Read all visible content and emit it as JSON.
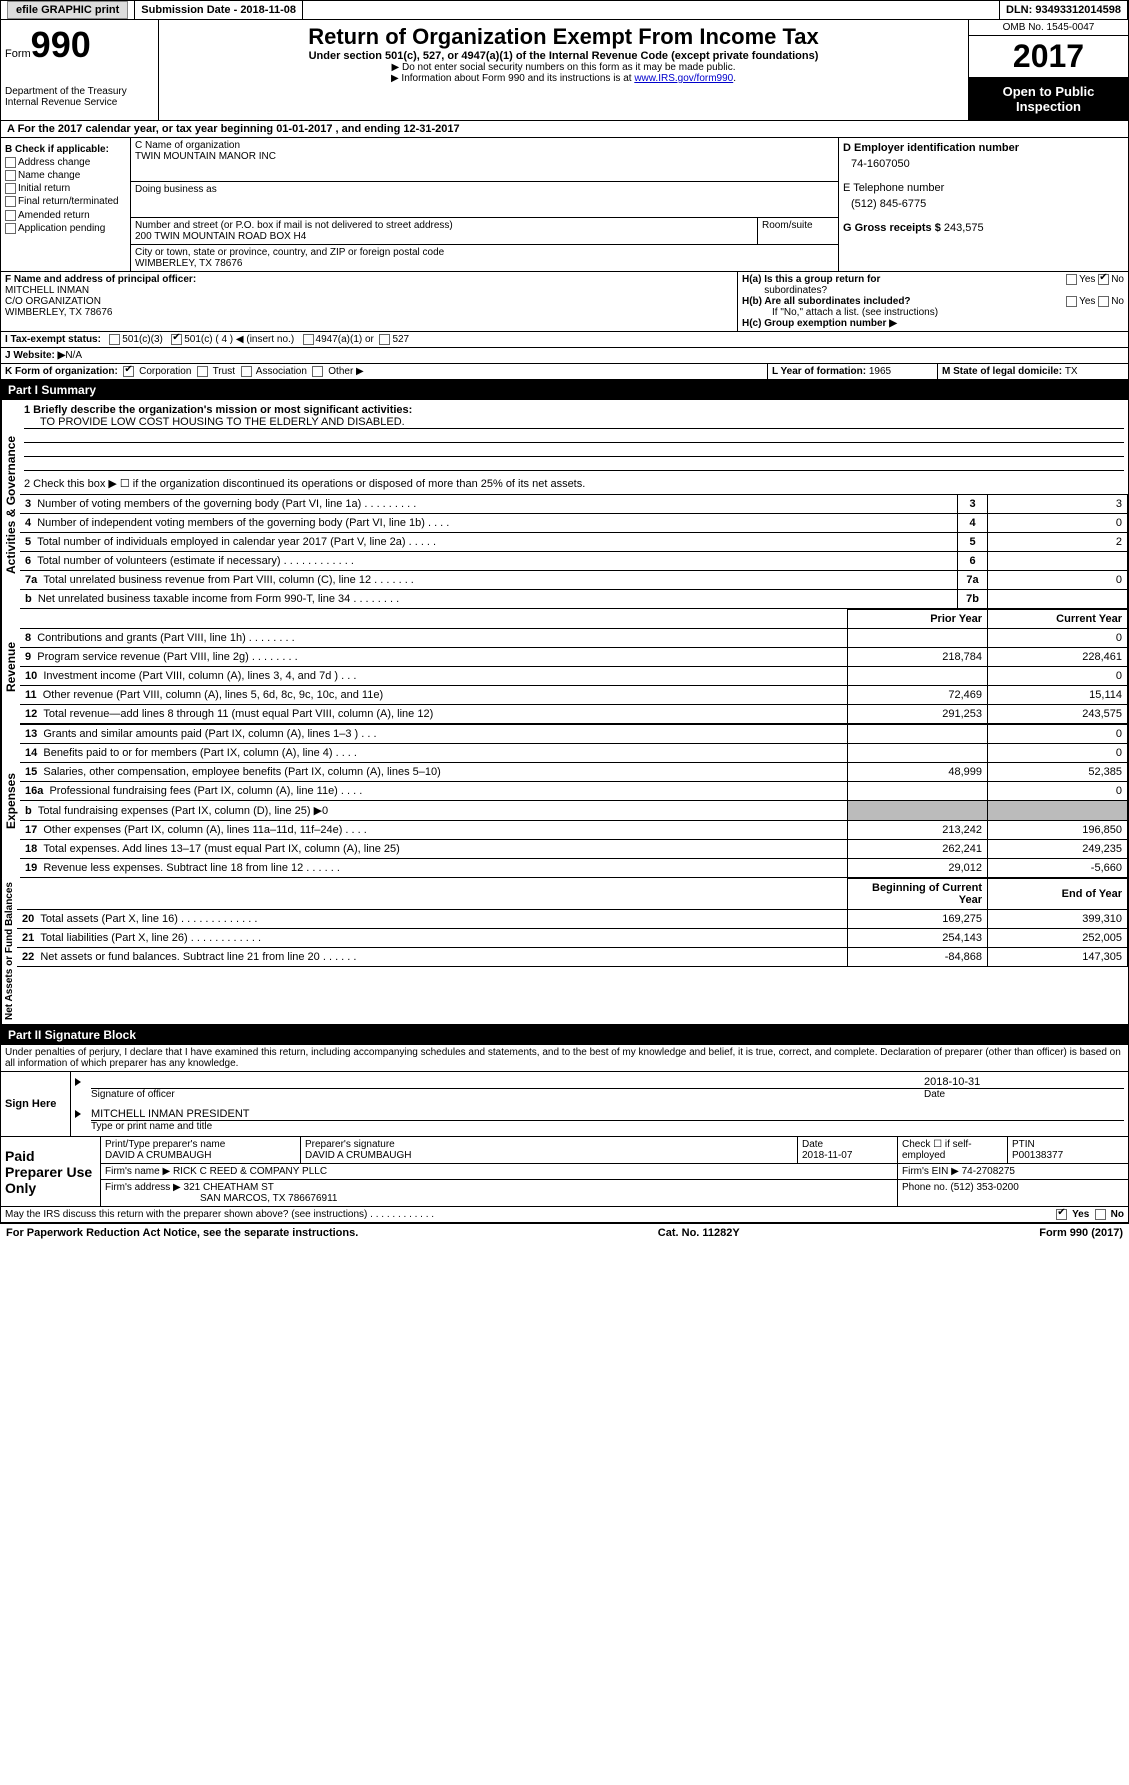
{
  "topbar": {
    "efile_label": "efile GRAPHIC print",
    "submission_label": "Submission Date - 2018-11-08",
    "dln_label": "DLN: 93493312014598"
  },
  "header": {
    "form_word": "Form",
    "form_num": "990",
    "dept1": "Department of the Treasury",
    "dept2": "Internal Revenue Service",
    "title": "Return of Organization Exempt From Income Tax",
    "subtitle": "Under section 501(c), 527, or 4947(a)(1) of the Internal Revenue Code (except private foundations)",
    "note1": "▶ Do not enter social security numbers on this form as it may be made public.",
    "note2_pre": "▶ Information about Form 990 and its instructions is at ",
    "note2_link": "www.IRS.gov/form990",
    "omb": "OMB No. 1545-0047",
    "year": "2017",
    "inspect1": "Open to Public",
    "inspect2": "Inspection"
  },
  "section_a": "A  For the 2017 calendar year, or tax year beginning 01-01-2017   , and ending 12-31-2017",
  "b": {
    "title": "B Check if applicable:",
    "opts": [
      "Address change",
      "Name change",
      "Initial return",
      "Final return/terminated",
      "Amended return",
      "Application pending"
    ]
  },
  "c": {
    "name_lbl": "C Name of organization",
    "name": "TWIN MOUNTAIN MANOR INC",
    "dba_lbl": "Doing business as",
    "street_lbl": "Number and street (or P.O. box if mail is not delivered to street address)",
    "room_lbl": "Room/suite",
    "street": "200 TWIN MOUNTAIN ROAD BOX H4",
    "city_lbl": "City or town, state or province, country, and ZIP or foreign postal code",
    "city": "WIMBERLEY, TX  78676"
  },
  "d": {
    "lbl": "D Employer identification number",
    "val": "74-1607050"
  },
  "e": {
    "lbl": "E Telephone number",
    "val": "(512) 845-6775"
  },
  "g": {
    "lbl": "G Gross receipts $ ",
    "val": "243,575"
  },
  "f": {
    "lbl": "F Name and address of principal officer:",
    "l1": "MITCHELL INMAN",
    "l2": "C/O ORGANIZATION",
    "l3": "WIMBERLEY, TX  78676"
  },
  "h": {
    "a_lbl": "H(a)  Is this a group return for",
    "a_sub": "subordinates?",
    "b_lbl": "H(b)  Are all subordinates included?",
    "b_note": "If \"No,\" attach a list. (see instructions)",
    "c_lbl": "H(c)  Group exemption number ▶",
    "yes": "Yes",
    "no": "No"
  },
  "i": {
    "lbl": "I  Tax-exempt status:",
    "o1": "501(c)(3)",
    "o2": "501(c) ( 4 ) ◀ (insert no.)",
    "o3": "4947(a)(1) or",
    "o4": "527"
  },
  "j": {
    "lbl": "J  Website: ▶",
    "val": " N/A"
  },
  "k": {
    "lbl": "K Form of organization:",
    "o1": "Corporation",
    "o2": "Trust",
    "o3": "Association",
    "o4": "Other ▶"
  },
  "l": {
    "lbl": "L Year of formation: ",
    "val": "1965"
  },
  "m": {
    "lbl": "M State of legal domicile: ",
    "val": "TX"
  },
  "part1": {
    "title": "Part I    Summary"
  },
  "gov": {
    "label": "Activities & Governance",
    "l1": "1  Briefly describe the organization's mission or most significant activities:",
    "l1v": "TO PROVIDE LOW COST HOUSING TO THE ELDERLY AND DISABLED.",
    "l2": "2  Check this box ▶ ☐  if the organization discontinued its operations or disposed of more than 25% of its net assets.",
    "rows": [
      {
        "n": "3",
        "t": "Number of voting members of the governing body (Part VI, line 1a)  .  .  .  .  .  .  .  .  .",
        "k": "3",
        "v": "3"
      },
      {
        "n": "4",
        "t": "Number of independent voting members of the governing body (Part VI, line 1b)    .   .   .   .",
        "k": "4",
        "v": "0"
      },
      {
        "n": "5",
        "t": "Total number of individuals employed in calendar year 2017 (Part V, line 2a)   .   .   .   .   .",
        "k": "5",
        "v": "2"
      },
      {
        "n": "6",
        "t": "Total number of volunteers (estimate if necessary)   .   .   .   .   .   .   .   .   .   .   .   .",
        "k": "6",
        "v": ""
      },
      {
        "n": "7a",
        "t": "Total unrelated business revenue from Part VIII, column (C), line 12   .   .   .   .   .   .   .",
        "k": "7a",
        "v": "0"
      },
      {
        "n": "b",
        "t": "Net unrelated business taxable income from Form 990-T, line 34   .   .   .   .   .   .   .   .",
        "k": "7b",
        "v": ""
      }
    ]
  },
  "rev": {
    "label": "Revenue",
    "h1": "Prior Year",
    "h2": "Current Year",
    "rows": [
      {
        "n": "8",
        "t": "Contributions and grants (Part VIII, line 1h)   .   .   .   .   .   .   .   .",
        "p": "",
        "c": "0"
      },
      {
        "n": "9",
        "t": "Program service revenue (Part VIII, line 2g)   .   .   .   .   .   .   .   .",
        "p": "218,784",
        "c": "228,461"
      },
      {
        "n": "10",
        "t": "Investment income (Part VIII, column (A), lines 3, 4, and 7d )   .   .   .",
        "p": "",
        "c": "0"
      },
      {
        "n": "11",
        "t": "Other revenue (Part VIII, column (A), lines 5, 6d, 8c, 9c, 10c, and 11e)",
        "p": "72,469",
        "c": "15,114"
      },
      {
        "n": "12",
        "t": "Total revenue—add lines 8 through 11 (must equal Part VIII, column (A), line 12)",
        "p": "291,253",
        "c": "243,575"
      }
    ]
  },
  "exp": {
    "label": "Expenses",
    "rows": [
      {
        "n": "13",
        "t": "Grants and similar amounts paid (Part IX, column (A), lines 1–3 )   .   .   .",
        "p": "",
        "c": "0"
      },
      {
        "n": "14",
        "t": "Benefits paid to or for members (Part IX, column (A), line 4)   .   .   .   .",
        "p": "",
        "c": "0"
      },
      {
        "n": "15",
        "t": "Salaries, other compensation, employee benefits (Part IX, column (A), lines 5–10)",
        "p": "48,999",
        "c": "52,385"
      },
      {
        "n": "16a",
        "t": "Professional fundraising fees (Part IX, column (A), line 11e)   .   .   .   .",
        "p": "",
        "c": "0"
      },
      {
        "n": "b",
        "t": "Total fundraising expenses (Part IX, column (D), line 25) ▶0",
        "p": "shaded",
        "c": "shaded"
      },
      {
        "n": "17",
        "t": "Other expenses (Part IX, column (A), lines 11a–11d, 11f–24e)   .   .   .   .",
        "p": "213,242",
        "c": "196,850"
      },
      {
        "n": "18",
        "t": "Total expenses. Add lines 13–17 (must equal Part IX, column (A), line 25)",
        "p": "262,241",
        "c": "249,235"
      },
      {
        "n": "19",
        "t": "Revenue less expenses. Subtract line 18 from line 12   .   .   .   .   .   .",
        "p": "29,012",
        "c": "-5,660"
      }
    ]
  },
  "net": {
    "label": "Net Assets or Fund Balances",
    "h1": "Beginning of Current Year",
    "h2": "End of Year",
    "rows": [
      {
        "n": "20",
        "t": "Total assets (Part X, line 16)   .   .   .   .   .   .   .   .   .   .   .   .   .",
        "p": "169,275",
        "c": "399,310"
      },
      {
        "n": "21",
        "t": "Total liabilities (Part X, line 26)   .   .   .   .   .   .   .   .   .   .   .   .",
        "p": "254,143",
        "c": "252,005"
      },
      {
        "n": "22",
        "t": "Net assets or fund balances. Subtract line 21 from line 20 .   .   .   .   .   .",
        "p": "-84,868",
        "c": "147,305"
      }
    ]
  },
  "part2": {
    "title": "Part II    Signature Block",
    "decl": "Under penalties of perjury, I declare that I have examined this return, including accompanying schedules and statements, and to the best of my knowledge and belief, it is true, correct, and complete. Declaration of preparer (other than officer) is based on all information of which preparer has any knowledge.",
    "sign_here": "Sign Here",
    "sig_lbl": "Signature of officer",
    "date_lbl": "Date",
    "sig_date": "2018-10-31",
    "name_title": "MITCHELL INMAN PRESIDENT",
    "name_lbl": "Type or print name and title"
  },
  "paid": {
    "title": "Paid Preparer Use Only",
    "prep_name_lbl": "Print/Type preparer's name",
    "prep_name": "DAVID A CRUMBAUGH",
    "prep_sig_lbl": "Preparer's signature",
    "prep_sig": "DAVID A CRUMBAUGH",
    "date_lbl": "Date",
    "date": "2018-11-07",
    "check_lbl": "Check ☐ if self-employed",
    "ptin_lbl": "PTIN",
    "ptin": "P00138377",
    "firm_name_lbl": "Firm's name      ▶ ",
    "firm_name": "RICK C REED & COMPANY PLLC",
    "firm_ein_lbl": "Firm's EIN ▶ ",
    "firm_ein": "74-2708275",
    "firm_addr_lbl": "Firm's address ▶ ",
    "firm_addr1": "321 CHEATHAM ST",
    "firm_addr2": "SAN MARCOS, TX  786676911",
    "phone_lbl": "Phone no. ",
    "phone": "(512) 353-0200"
  },
  "discuss": {
    "q": "May the IRS discuss this return with the preparer shown above? (see instructions)   .   .   .   .   .   .   .   .   .   .   .   .",
    "yes": "Yes",
    "no": "No"
  },
  "footer": {
    "l": "For Paperwork Reduction Act Notice, see the separate instructions.",
    "c": "Cat. No. 11282Y",
    "r": "Form 990 (2017)"
  }
}
